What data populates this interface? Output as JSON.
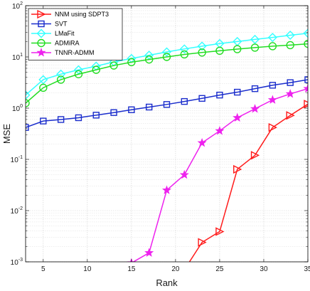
{
  "chart_data": {
    "type": "line",
    "xlabel": "Rank",
    "ylabel": "MSE",
    "xlim": [
      3,
      35
    ],
    "ylim": [
      0.001,
      100
    ],
    "yscale": "log",
    "grid": true,
    "legend_position": "top-left",
    "x_ticks": [
      5,
      10,
      15,
      20,
      25,
      30,
      35
    ],
    "x_tick_labels": [
      "5",
      "10",
      "15",
      "20",
      "25",
      "30",
      "35"
    ],
    "y_ticks": [
      0.001,
      0.01,
      0.1,
      1,
      10,
      100
    ],
    "y_tick_labels": [
      {
        "base": "10",
        "exp": "-3"
      },
      {
        "base": "10",
        "exp": "-2"
      },
      {
        "base": "10",
        "exp": "-1"
      },
      {
        "base": "10",
        "exp": "0"
      },
      {
        "base": "10",
        "exp": "1"
      },
      {
        "base": "10",
        "exp": "2"
      }
    ],
    "series": [
      {
        "name": "NNM using SDPT3",
        "color": "#ff1a1a",
        "marker": "triangle-right",
        "x": [
          21,
          23,
          25,
          27,
          29,
          31,
          33,
          35
        ],
        "y": [
          0.0007,
          0.0024,
          0.0039,
          0.064,
          0.12,
          0.42,
          0.72,
          1.2
        ]
      },
      {
        "name": "SVT",
        "color": "#1a2dcc",
        "marker": "square",
        "x": [
          3,
          5,
          7,
          9,
          11,
          13,
          15,
          17,
          19,
          21,
          23,
          25,
          27,
          29,
          31,
          33,
          35
        ],
        "y": [
          0.42,
          0.56,
          0.6,
          0.65,
          0.73,
          0.82,
          0.93,
          1.05,
          1.18,
          1.35,
          1.55,
          1.8,
          2.05,
          2.4,
          2.8,
          3.15,
          3.6
        ]
      },
      {
        "name": "LMaFit",
        "color": "#33ffff",
        "marker": "diamond",
        "x": [
          3,
          5,
          7,
          9,
          11,
          13,
          15,
          17,
          19,
          21,
          23,
          25,
          27,
          29,
          31,
          33,
          35
        ],
        "y": [
          1.8,
          3.6,
          4.6,
          5.6,
          6.6,
          8.0,
          9.3,
          10.8,
          12.5,
          14.3,
          16.2,
          18.2,
          20.0,
          22.0,
          24.0,
          26.5,
          29.0
        ]
      },
      {
        "name": "ADMiRA",
        "color": "#22dd22",
        "marker": "circle",
        "x": [
          3,
          5,
          7,
          9,
          11,
          13,
          15,
          17,
          19,
          21,
          23,
          25,
          27,
          29,
          31,
          33,
          35
        ],
        "y": [
          1.25,
          2.5,
          3.6,
          4.6,
          5.6,
          6.8,
          7.9,
          8.9,
          10.0,
          11.2,
          12.2,
          13.2,
          14.2,
          15.2,
          16.2,
          17.0,
          18.0
        ]
      },
      {
        "name": "TNNR-ADMM",
        "color": "#ee22ee",
        "marker": "star",
        "x": [
          15,
          17,
          19,
          21,
          23,
          25,
          27,
          29,
          31,
          33,
          35
        ],
        "y": [
          0.00095,
          0.0015,
          0.025,
          0.05,
          0.21,
          0.36,
          0.65,
          0.97,
          1.45,
          1.9,
          2.4
        ]
      }
    ]
  }
}
